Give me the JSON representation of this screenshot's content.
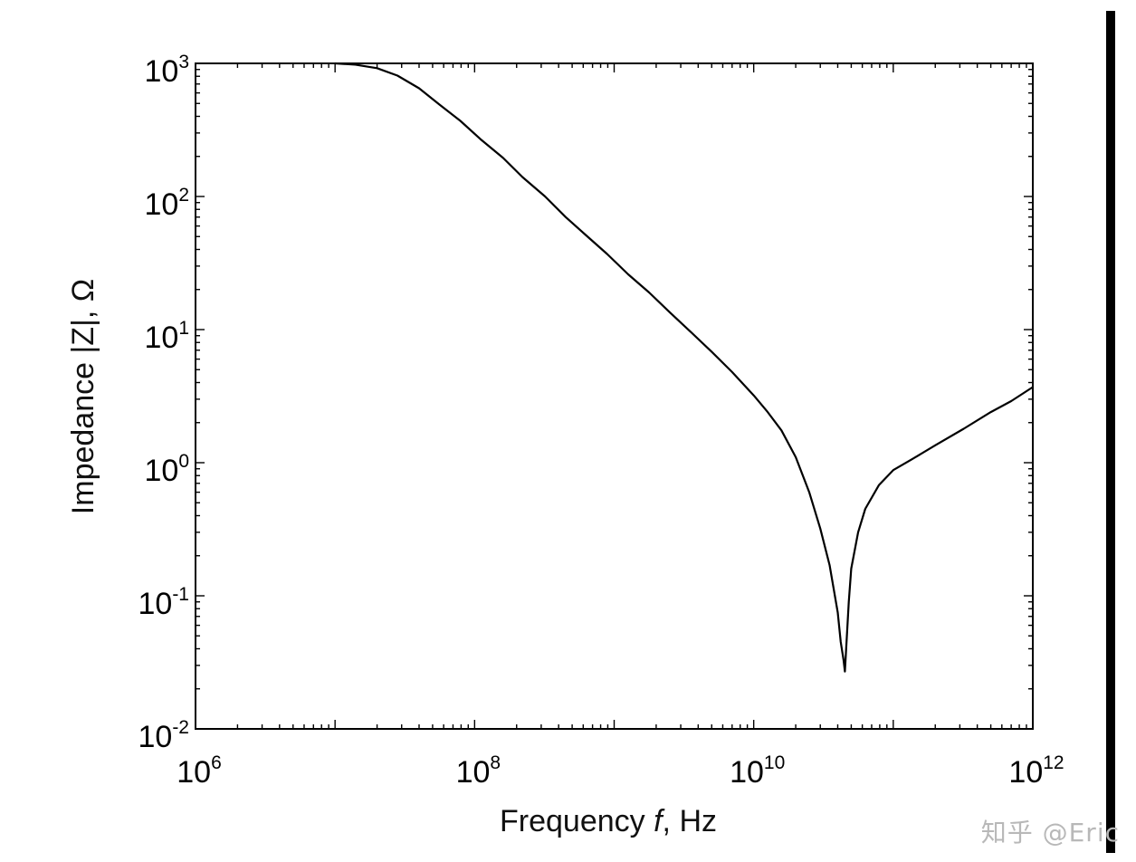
{
  "chart_data": {
    "type": "line",
    "xlabel_main": "Frequency ",
    "xlabel_var": "f",
    "xlabel_unit": ", Hz",
    "ylabel": "Impedance |Z|, Ω",
    "x_scale": "log",
    "y_scale": "log",
    "xlim": [
      1000000,
      1000000000000
    ],
    "ylim": [
      0.01,
      1000
    ],
    "x_ticks": [
      {
        "value": 1000000,
        "base": "10",
        "exp": "6"
      },
      {
        "value": 100000000,
        "base": "10",
        "exp": "8"
      },
      {
        "value": 10000000000,
        "base": "10",
        "exp": "10"
      },
      {
        "value": 1000000000000,
        "base": "10",
        "exp": "12"
      }
    ],
    "y_ticks": [
      {
        "value": 1000,
        "base": "10",
        "exp": "3"
      },
      {
        "value": 100,
        "base": "10",
        "exp": "2"
      },
      {
        "value": 10,
        "base": "10",
        "exp": "1"
      },
      {
        "value": 1,
        "base": "10",
        "exp": "0"
      },
      {
        "value": 0.1,
        "base": "10",
        "exp": "-1"
      },
      {
        "value": 0.01,
        "base": "10",
        "exp": "-2"
      }
    ],
    "grid": false,
    "series": [
      {
        "color": "#000000",
        "x": [
          10000000,
          14000000,
          20000000,
          28000000,
          40000000,
          56000000,
          79000000,
          110000000,
          160000000,
          220000000,
          320000000,
          450000000,
          630000000,
          890000000,
          1260000000,
          1780000000,
          2500000000,
          3500000000,
          5000000000,
          7000000000,
          10000000000,
          12600000000,
          15800000000,
          20000000000,
          25000000000,
          30000000000,
          35000000000,
          40000000000,
          42000000000,
          44000000000,
          45000000000,
          46000000000,
          48000000000,
          50000000000,
          56000000000,
          63000000000,
          79000000000,
          100000000000,
          140000000000,
          200000000000,
          320000000000,
          500000000000,
          700000000000,
          1000000000000
        ],
        "y": [
          1000,
          978,
          920,
          810,
          650,
          490,
          370,
          270,
          195,
          140,
          100,
          70,
          51,
          37,
          26,
          19,
          13.5,
          9.7,
          6.8,
          4.8,
          3.2,
          2.4,
          1.75,
          1.1,
          0.6,
          0.32,
          0.17,
          0.075,
          0.045,
          0.033,
          0.027,
          0.04,
          0.09,
          0.16,
          0.3,
          0.45,
          0.68,
          0.88,
          1.08,
          1.35,
          1.8,
          2.4,
          2.9,
          3.7
        ]
      }
    ]
  },
  "watermark": "知乎 @Eric"
}
